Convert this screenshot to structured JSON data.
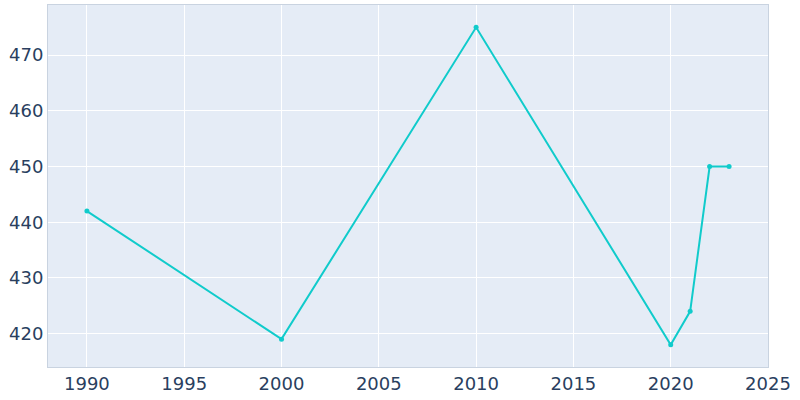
{
  "chart_data": {
    "type": "line",
    "x": [
      1990,
      2000,
      2010,
      2020,
      2021,
      2022,
      2023
    ],
    "values": [
      442,
      419,
      475,
      418,
      424,
      450,
      450
    ],
    "color": "#10cbcb",
    "marker": "circle",
    "xlim": [
      1988,
      2025
    ],
    "xticks": [
      1990,
      1995,
      2000,
      2005,
      2010,
      2015,
      2020,
      2025
    ],
    "ylim": [
      414,
      479
    ],
    "yticks": [
      420,
      430,
      440,
      450,
      460,
      470
    ],
    "grid": true
  }
}
